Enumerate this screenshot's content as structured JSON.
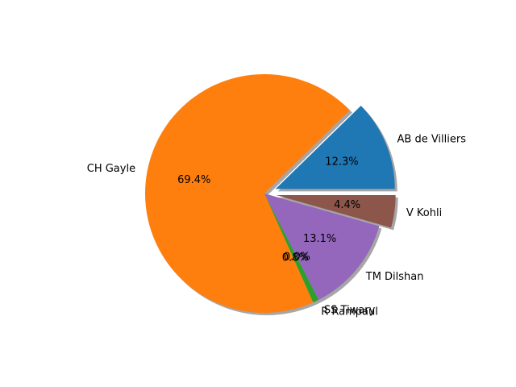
{
  "chart_data": {
    "type": "pie",
    "title": "",
    "slices": [
      {
        "label": "AB de Villiers",
        "value": 12.3,
        "pct_label": "12.3%",
        "color": "#1f77b4",
        "exploded": true
      },
      {
        "label": "CH Gayle",
        "value": 69.4,
        "pct_label": "69.4%",
        "color": "#ff7f0e",
        "exploded": false
      },
      {
        "label": "R Rampaul",
        "value": 0.8,
        "pct_label": "0.8%",
        "color": "#2ca02c",
        "exploded": false
      },
      {
        "label": "SS Tiwary",
        "value": 0.0,
        "pct_label": "0.0%",
        "color": "#d62728",
        "exploded": false
      },
      {
        "label": "TM Dilshan",
        "value": 13.1,
        "pct_label": "13.1%",
        "color": "#9467bd",
        "exploded": false
      },
      {
        "label": "V Kohli",
        "value": 4.4,
        "pct_label": "4.4%",
        "color": "#8c564b",
        "exploded": true
      }
    ],
    "shadow": true,
    "start_angle_deg": 0,
    "direction": "counterclockwise",
    "legend": "none"
  }
}
